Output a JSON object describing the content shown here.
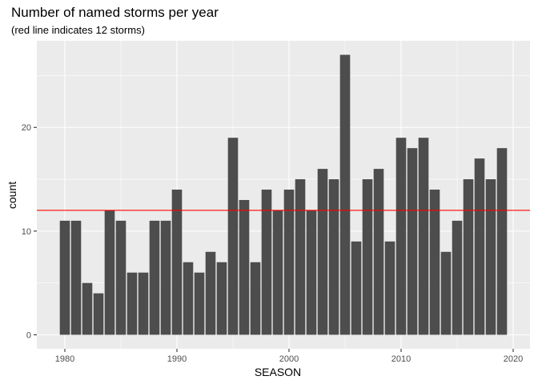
{
  "chart_data": {
    "type": "bar",
    "title": "Number of named storms per year",
    "subtitle": "(red line indicates 12 storms)",
    "xlabel": "SEASON",
    "ylabel": "count",
    "x": [
      1980,
      1981,
      1982,
      1983,
      1984,
      1985,
      1986,
      1987,
      1988,
      1989,
      1990,
      1991,
      1992,
      1993,
      1994,
      1995,
      1996,
      1997,
      1998,
      1999,
      2000,
      2001,
      2002,
      2003,
      2004,
      2005,
      2006,
      2007,
      2008,
      2009,
      2010,
      2011,
      2012,
      2013,
      2014,
      2015,
      2016,
      2017,
      2018,
      2019
    ],
    "values": [
      11,
      11,
      5,
      4,
      12,
      11,
      6,
      6,
      11,
      11,
      14,
      7,
      6,
      8,
      7,
      19,
      13,
      7,
      14,
      12,
      14,
      15,
      12,
      16,
      15,
      27,
      9,
      15,
      16,
      9,
      19,
      18,
      19,
      14,
      8,
      11,
      15,
      17,
      15,
      18
    ],
    "xlim": [
      1977.5,
      2021.5
    ],
    "ylim": [
      -1.35,
      28.35
    ],
    "xticks": [
      1980,
      1990,
      2000,
      2010,
      2020
    ],
    "yticks": [
      0,
      10,
      20
    ],
    "hline": 12,
    "grid": true,
    "legend": "none",
    "colors": {
      "bar": "#4d4d4d",
      "panel": "#ebebeb",
      "grid_major": "#ffffff",
      "hline": "#ff0000"
    }
  }
}
